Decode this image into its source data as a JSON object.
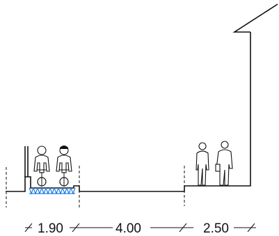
{
  "diagram": {
    "type": "street-cross-section",
    "colors": {
      "line": "#111111",
      "bike_lane_surface": "#1e7fe0",
      "background": "#ffffff"
    },
    "dimensions": [
      {
        "id": "bike-lane",
        "label": "1.90"
      },
      {
        "id": "roadway",
        "label": "4.00"
      },
      {
        "id": "sidewalk",
        "label": "2.50"
      }
    ],
    "icons": [
      "cyclist-icon",
      "pedestrian-icon",
      "bollard-icon",
      "dimension-tick-icon"
    ]
  }
}
